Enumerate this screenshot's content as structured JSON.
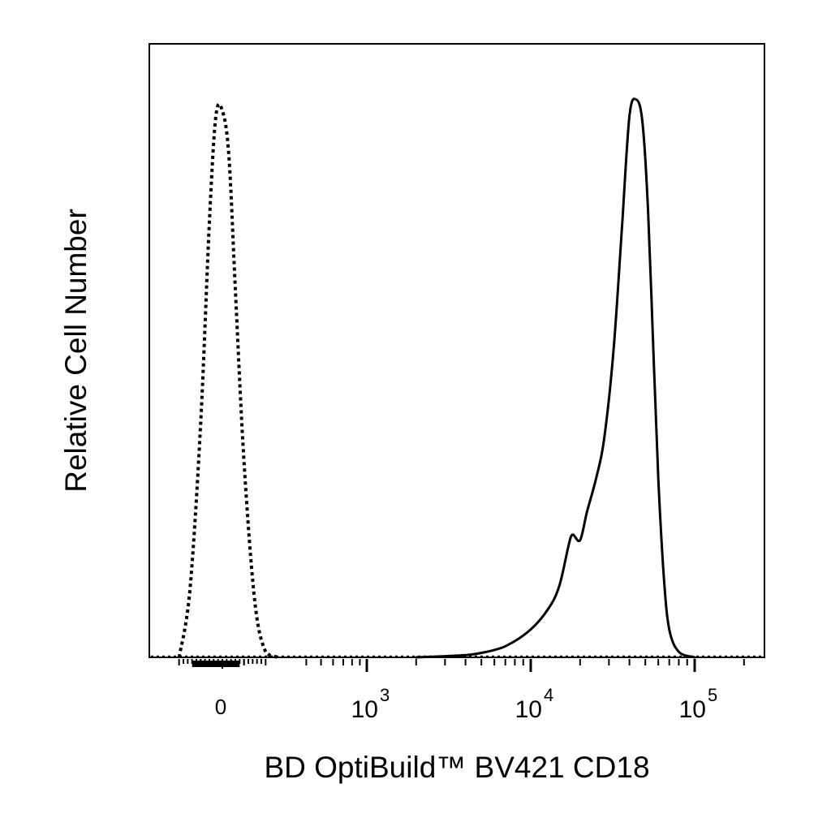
{
  "chart_data": {
    "type": "line",
    "title": "",
    "xlabel": "BD OptiBuild™ BV421 CD18",
    "ylabel": "Relative Cell Number",
    "x_scale": "biexponential",
    "xlim": [
      -300,
      200000
    ],
    "ylim": [
      0,
      1.1
    ],
    "grid": false,
    "legend": "none",
    "x_tick_labels": [
      {
        "value": 0,
        "label": "0"
      },
      {
        "value": 1000,
        "base": "10",
        "exp": "3"
      },
      {
        "value": 10000,
        "base": "10",
        "exp": "4"
      },
      {
        "value": 100000,
        "base": "10",
        "exp": "5"
      }
    ],
    "series": [
      {
        "style": "dotted",
        "color": "#000000",
        "x": [
          -200,
          -150,
          -100,
          -60,
          -30,
          0,
          30,
          60,
          100,
          150,
          200,
          260
        ],
        "y": [
          0.0,
          0.12,
          0.42,
          0.78,
          0.97,
          0.98,
          0.9,
          0.66,
          0.35,
          0.1,
          0.01,
          0.0
        ]
      },
      {
        "style": "solid",
        "color": "#000000",
        "x": [
          2000,
          3000,
          4000,
          5000,
          7000,
          10000,
          13000,
          15000,
          17000,
          18000,
          20000,
          22000,
          25000,
          28000,
          32000,
          36000,
          40000,
          44000,
          48000,
          52000,
          56000,
          60000,
          65000,
          70000,
          80000,
          100000
        ],
        "y": [
          0.0,
          0.002,
          0.004,
          0.008,
          0.02,
          0.05,
          0.09,
          0.13,
          0.2,
          0.22,
          0.21,
          0.26,
          0.32,
          0.39,
          0.55,
          0.77,
          0.97,
          1.0,
          0.96,
          0.8,
          0.55,
          0.32,
          0.14,
          0.05,
          0.01,
          0.0
        ]
      }
    ]
  }
}
